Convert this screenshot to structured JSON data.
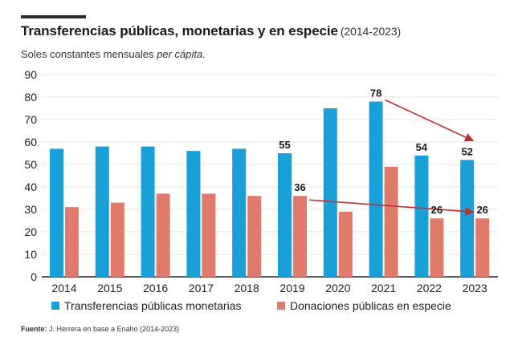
{
  "header": {
    "title": "Transferencias públicas, monetarias y en especie",
    "title_period": "(2014-2023)",
    "subtitle_prefix": "Soles constantes mensuales",
    "subtitle_italic": "per cápita."
  },
  "footer": {
    "label": "Fuente:",
    "text": "J. Herrera en base a Enaho (2014-2023)"
  },
  "colors": {
    "series_1": "#1aa0d8",
    "series_2": "#e07a6a",
    "arrow": "#c0302e",
    "grid": "#e6e6e6",
    "axis": "#222222"
  },
  "chart_data": {
    "type": "bar",
    "categories": [
      "2014",
      "2015",
      "2016",
      "2017",
      "2018",
      "2019",
      "2020",
      "2021",
      "2022",
      "2023"
    ],
    "series": [
      {
        "name": "Transferencias públicas monetarias",
        "values": [
          57,
          58,
          58,
          56,
          57,
          55,
          75,
          78,
          54,
          52
        ]
      },
      {
        "name": "Donaciones públicas en especie",
        "values": [
          31,
          33,
          37,
          37,
          36,
          36,
          29,
          49,
          26,
          26
        ]
      }
    ],
    "ylim": [
      0,
      90
    ],
    "yticks": [
      0,
      10,
      20,
      30,
      40,
      50,
      60,
      70,
      80,
      90
    ],
    "grid": true,
    "legend": "bottom",
    "data_labels": [
      {
        "series": 0,
        "category": "2019",
        "text": "55"
      },
      {
        "series": 0,
        "category": "2021",
        "text": "78"
      },
      {
        "series": 0,
        "category": "2022",
        "text": "54"
      },
      {
        "series": 0,
        "category": "2023",
        "text": "52"
      },
      {
        "series": 1,
        "category": "2019",
        "text": "36"
      },
      {
        "series": 1,
        "category": "2022",
        "text": "26"
      },
      {
        "series": 1,
        "category": "2023",
        "text": "26"
      }
    ],
    "arrows": [
      {
        "series": 0,
        "from": "2021",
        "to": "2023"
      },
      {
        "series": 1,
        "from": "2019",
        "to": "2023"
      }
    ]
  }
}
